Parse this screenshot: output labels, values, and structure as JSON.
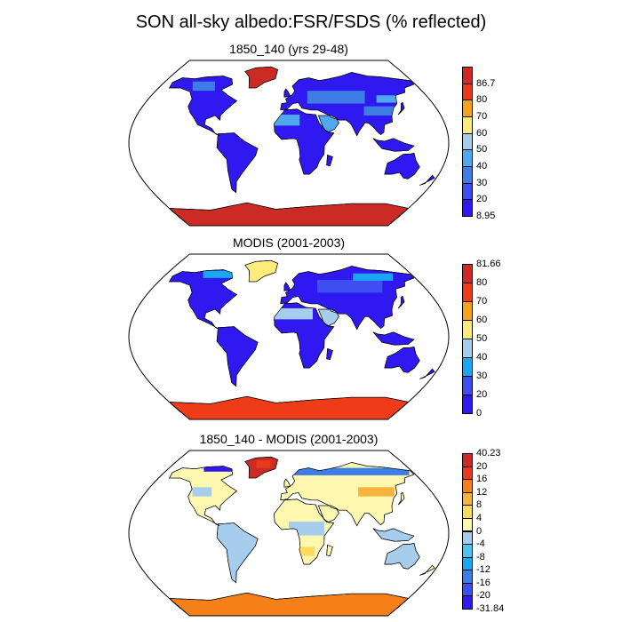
{
  "title": "SON all-sky albedo:FSR/FSDS (% reflected)",
  "panels": [
    {
      "id": "p1",
      "title": "1850_140 (yrs 29-48)",
      "field": "model",
      "colorbar": {
        "colors": [
          "#3019f0",
          "#3f4ef0",
          "#3e7de6",
          "#4fa8f0",
          "#a7cdec",
          "#fdeb7a",
          "#f7a319",
          "#e83a1d",
          "#cb2a25"
        ],
        "labels": [
          "8.95",
          "20",
          "30",
          "40",
          "50",
          "60",
          "70",
          "80",
          "86.7"
        ]
      }
    },
    {
      "id": "p2",
      "title": "MODIS (2001-2003)",
      "field": "obs",
      "colorbar": {
        "colors": [
          "#3019f0",
          "#3f4ef0",
          "#1aa6f0",
          "#a7cdec",
          "#fdeb7a",
          "#f7a319",
          "#ef3c18",
          "#cb2a25"
        ],
        "labels": [
          "0",
          "20",
          "30",
          "40",
          "50",
          "60",
          "70",
          "80",
          "81.66"
        ]
      }
    },
    {
      "id": "p3",
      "title": "1850_140 - MODIS (2001-2003)",
      "field": "diff",
      "colorbar": {
        "colors": [
          "#3019f0",
          "#3f4ef0",
          "#3e7de6",
          "#1aa6f0",
          "#4fc3ef",
          "#a7cdec",
          "#fdf7b0",
          "#fddc5c",
          "#f7b33c",
          "#f57f18",
          "#e83a1d",
          "#cb2a25"
        ],
        "labels": [
          "-31.84",
          "-20",
          "-16",
          "-12",
          "-8",
          "-4",
          "0",
          "4",
          "8",
          "12",
          "16",
          "20",
          "40.23"
        ]
      }
    }
  ]
}
